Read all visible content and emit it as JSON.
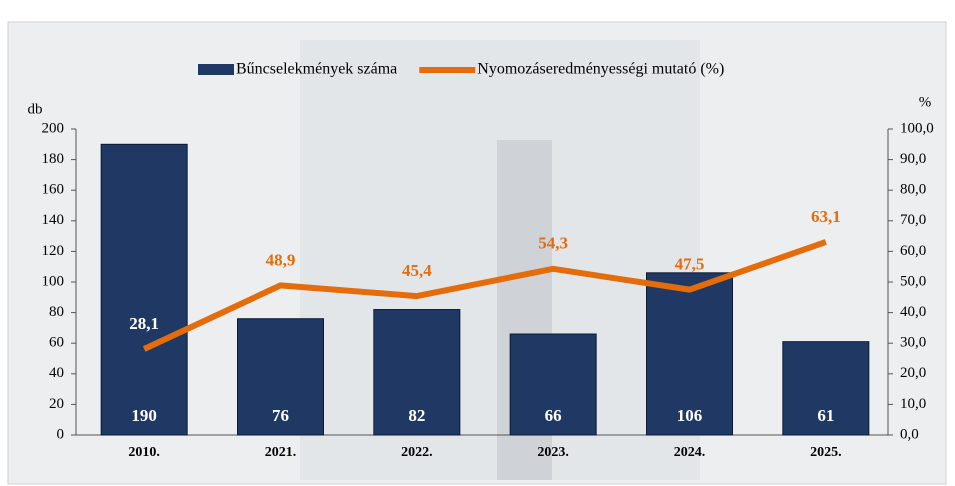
{
  "chart_data": {
    "type": "bar-line",
    "categories": [
      "2010.",
      "2021.",
      "2022.",
      "2023.",
      "2024.",
      "2025."
    ],
    "series": [
      {
        "name": "Bűncselekmények száma",
        "type": "bar",
        "axis": "y",
        "color": "#1f3864",
        "values": [
          190,
          76,
          82,
          66,
          106,
          61
        ]
      },
      {
        "name": "Nyomozáseredményességi mutató (%)",
        "type": "line",
        "axis": "y2",
        "color": "#e46c0a",
        "values": [
          28.1,
          48.9,
          45.4,
          54.3,
          47.5,
          63.1
        ],
        "value_labels": [
          "28,1",
          "48,9",
          "45,4",
          "54,3",
          "47,5",
          "63,1"
        ]
      }
    ],
    "ylabel": "db",
    "y2label": "%",
    "ylim": [
      0,
      200
    ],
    "yticks": [
      0,
      20,
      40,
      60,
      80,
      100,
      120,
      140,
      160,
      180,
      200
    ],
    "y2lim": [
      0,
      100
    ],
    "y2ticks": [
      {
        "value": 0,
        "label": "0,0"
      },
      {
        "value": 10,
        "label": "10,0"
      },
      {
        "value": 20,
        "label": "20,0"
      },
      {
        "value": 30,
        "label": "30,0"
      },
      {
        "value": 40,
        "label": "40,0"
      },
      {
        "value": 50,
        "label": "50,0"
      },
      {
        "value": 60,
        "label": "60,0"
      },
      {
        "value": 70,
        "label": "70,0"
      },
      {
        "value": 80,
        "label": "80,0"
      },
      {
        "value": 90,
        "label": "90,0"
      },
      {
        "value": 100,
        "label": "100,0"
      }
    ],
    "legend": "top"
  }
}
